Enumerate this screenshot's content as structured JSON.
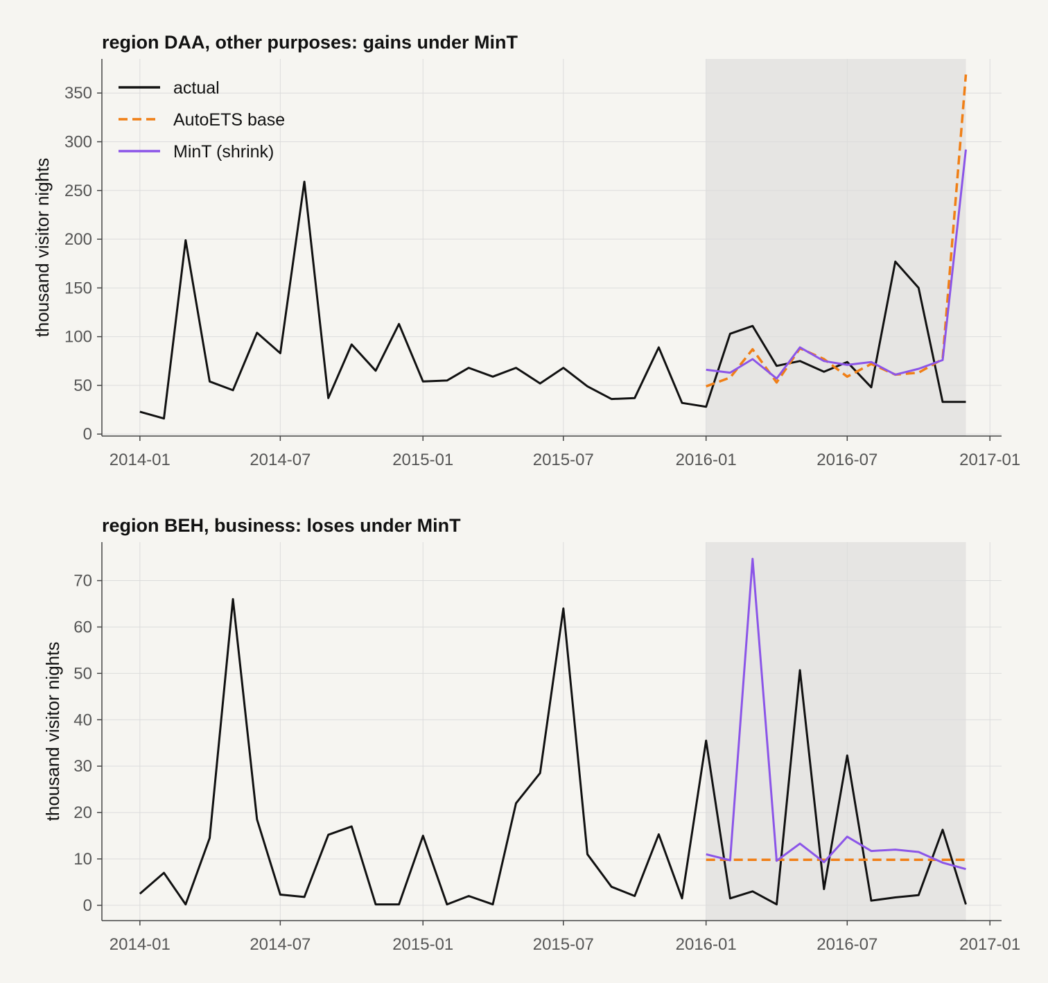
{
  "chart_data": [
    {
      "type": "line",
      "title": "region DAA, other purposes: gains under MinT",
      "xlabel": "",
      "ylabel": "thousand visitor nights",
      "x_ticks": [
        "2014-01",
        "2014-07",
        "2015-01",
        "2015-07",
        "2016-01",
        "2016-07",
        "2017-01"
      ],
      "y_ticks": [
        0,
        50,
        100,
        150,
        200,
        250,
        300,
        350
      ],
      "ylim": [
        -2,
        385
      ],
      "xlim": [
        "2013-11-13",
        "2017-01-16"
      ],
      "forecast_window": [
        "2016-01",
        "2016-12"
      ],
      "grid": true,
      "legend": "top-left",
      "legend_entries": [
        "actual",
        "AutoETS base",
        "MinT (shrink)"
      ],
      "series": [
        {
          "name": "actual",
          "color": "#111111",
          "style": "solid",
          "x": [
            "2014-01",
            "2014-02",
            "2014-03",
            "2014-04",
            "2014-05",
            "2014-06",
            "2014-07",
            "2014-08",
            "2014-09",
            "2014-10",
            "2014-11",
            "2014-12",
            "2015-01",
            "2015-02",
            "2015-03",
            "2015-04",
            "2015-05",
            "2015-06",
            "2015-07",
            "2015-08",
            "2015-09",
            "2015-10",
            "2015-11",
            "2015-12",
            "2016-01",
            "2016-02",
            "2016-03",
            "2016-04",
            "2016-05",
            "2016-06",
            "2016-07",
            "2016-08",
            "2016-09",
            "2016-10",
            "2016-11",
            "2016-12"
          ],
          "values": [
            23,
            16,
            199,
            54,
            45,
            104,
            83,
            259,
            37,
            92,
            65,
            113,
            54,
            55,
            68,
            59,
            68,
            52,
            68,
            49,
            36,
            37,
            89,
            32,
            28,
            103,
            111,
            70,
            75,
            64,
            74,
            48,
            177,
            150,
            33,
            33
          ]
        },
        {
          "name": "AutoETS base",
          "color": "#f07f16",
          "style": "dashed",
          "x": [
            "2016-01",
            "2016-02",
            "2016-03",
            "2016-04",
            "2016-05",
            "2016-06",
            "2016-07",
            "2016-08",
            "2016-09",
            "2016-10",
            "2016-11",
            "2016-12"
          ],
          "values": [
            49,
            58,
            87,
            53,
            88,
            77,
            59,
            72,
            61,
            63,
            77,
            369
          ]
        },
        {
          "name": "MinT (shrink)",
          "color": "#8b55e8",
          "style": "solid",
          "x": [
            "2016-01",
            "2016-02",
            "2016-03",
            "2016-04",
            "2016-05",
            "2016-06",
            "2016-07",
            "2016-08",
            "2016-09",
            "2016-10",
            "2016-11",
            "2016-12"
          ],
          "values": [
            66,
            63,
            77,
            57,
            89,
            75,
            71,
            74,
            61,
            67,
            76,
            292
          ]
        }
      ]
    },
    {
      "type": "line",
      "title": "region BEH, business: loses under MinT",
      "xlabel": "",
      "ylabel": "thousand visitor nights",
      "x_ticks": [
        "2014-01",
        "2014-07",
        "2015-01",
        "2015-07",
        "2016-01",
        "2016-07",
        "2017-01"
      ],
      "y_ticks": [
        0,
        10,
        20,
        30,
        40,
        50,
        60,
        70
      ],
      "ylim": [
        -3.3,
        78.3
      ],
      "xlim": [
        "2013-11-13",
        "2017-01-16"
      ],
      "forecast_window": [
        "2016-01",
        "2016-12"
      ],
      "grid": true,
      "legend": "none",
      "series": [
        {
          "name": "actual",
          "color": "#111111",
          "style": "solid",
          "x": [
            "2014-01",
            "2014-02",
            "2014-03",
            "2014-04",
            "2014-05",
            "2014-06",
            "2014-07",
            "2014-08",
            "2014-09",
            "2014-10",
            "2014-11",
            "2014-12",
            "2015-01",
            "2015-02",
            "2015-03",
            "2015-04",
            "2015-05",
            "2015-06",
            "2015-07",
            "2015-08",
            "2015-09",
            "2015-10",
            "2015-11",
            "2015-12",
            "2016-01",
            "2016-02",
            "2016-03",
            "2016-04",
            "2016-05",
            "2016-06",
            "2016-07",
            "2016-08",
            "2016-09",
            "2016-10",
            "2016-11",
            "2016-12"
          ],
          "values": [
            2.5,
            7,
            0.2,
            14.5,
            66,
            18.5,
            2.3,
            1.8,
            15.2,
            17,
            0.2,
            0.2,
            15,
            0.2,
            2,
            0.2,
            22,
            28.5,
            64,
            11,
            4,
            2,
            15.3,
            1.5,
            35.5,
            1.5,
            3,
            0.2,
            50.7,
            3.5,
            32.3,
            1,
            1.7,
            2.2,
            16.3,
            0.2
          ]
        },
        {
          "name": "AutoETS base",
          "color": "#f07f16",
          "style": "dashed",
          "x": [
            "2016-01",
            "2016-02",
            "2016-03",
            "2016-04",
            "2016-05",
            "2016-06",
            "2016-07",
            "2016-08",
            "2016-09",
            "2016-10",
            "2016-11",
            "2016-12"
          ],
          "values": [
            9.8,
            9.8,
            9.8,
            9.8,
            9.8,
            9.8,
            9.8,
            9.8,
            9.8,
            9.8,
            9.8,
            9.8
          ]
        },
        {
          "name": "MinT (shrink)",
          "color": "#8b55e8",
          "style": "solid",
          "x": [
            "2016-01",
            "2016-02",
            "2016-03",
            "2016-04",
            "2016-05",
            "2016-06",
            "2016-07",
            "2016-08",
            "2016-09",
            "2016-10",
            "2016-11",
            "2016-12"
          ],
          "values": [
            11,
            9.7,
            74.7,
            9.6,
            13.3,
            9.3,
            14.8,
            11.7,
            12,
            11.5,
            9.2,
            7.8
          ]
        }
      ]
    }
  ]
}
